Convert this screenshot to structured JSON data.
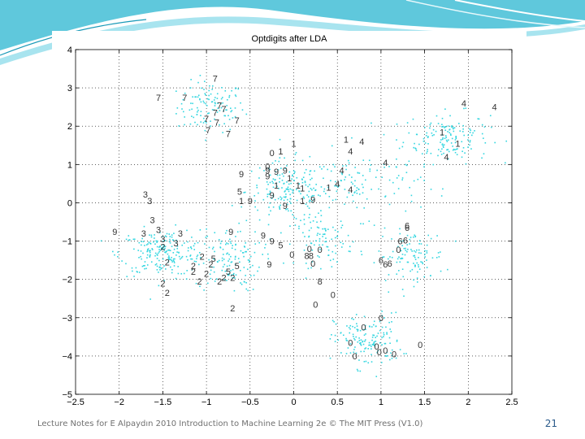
{
  "slide": {
    "footer": "Lecture Notes for E Alpaydın 2010 Introduction to Machine Learning 2e © The MIT Press (V1.0)",
    "page_number": "21",
    "header_colors": [
      "#5fc8dc",
      "#a8e4ef",
      "#1a9ab8"
    ]
  },
  "chart_data": {
    "type": "scatter",
    "title": "Optdigits after LDA",
    "xlim": [
      -2.5,
      2.5
    ],
    "ylim": [
      -5,
      4
    ],
    "xticks": [
      -2.5,
      -2,
      -1.5,
      -1,
      -0.5,
      0,
      0.5,
      1,
      1.5,
      2,
      2.5
    ],
    "yticks": [
      -5,
      -4,
      -3,
      -2,
      -1,
      0,
      1,
      2,
      3,
      4
    ],
    "grid": "dotted",
    "point_color": "#33d6e0",
    "background_point_clusters": [
      {
        "center": [
          -0.95,
          2.5
        ],
        "spread": [
          0.35,
          0.6
        ],
        "count": 120
      },
      {
        "center": [
          1.75,
          1.7
        ],
        "spread": [
          0.45,
          0.6
        ],
        "count": 150
      },
      {
        "center": [
          -0.05,
          0.3
        ],
        "spread": [
          0.45,
          0.75
        ],
        "count": 190
      },
      {
        "center": [
          -1.5,
          -1.3
        ],
        "spread": [
          0.45,
          0.55
        ],
        "count": 210
      },
      {
        "center": [
          -0.75,
          -1.5
        ],
        "spread": [
          0.35,
          0.75
        ],
        "count": 130
      },
      {
        "center": [
          0.85,
          -3.6
        ],
        "spread": [
          0.35,
          0.65
        ],
        "count": 150
      },
      {
        "center": [
          1.35,
          -1.4
        ],
        "spread": [
          0.35,
          0.6
        ],
        "count": 110
      },
      {
        "center": [
          0.35,
          -1.0
        ],
        "spread": [
          0.3,
          0.6
        ],
        "count": 90
      },
      {
        "center": [
          0.8,
          0.5
        ],
        "spread": [
          0.6,
          0.8
        ],
        "count": 110
      }
    ],
    "labeled_points": [
      {
        "label": "7",
        "x": -0.9,
        "y": 3.25
      },
      {
        "label": "7",
        "x": -1.55,
        "y": 2.75
      },
      {
        "label": "7",
        "x": -1.25,
        "y": 2.75
      },
      {
        "label": "7",
        "x": -0.85,
        "y": 2.55
      },
      {
        "label": "7",
        "x": -0.8,
        "y": 2.45
      },
      {
        "label": "7",
        "x": -0.9,
        "y": 2.35
      },
      {
        "label": "7",
        "x": -1.0,
        "y": 2.2
      },
      {
        "label": "7",
        "x": -0.88,
        "y": 2.1
      },
      {
        "label": "7",
        "x": -0.65,
        "y": 2.15
      },
      {
        "label": "7",
        "x": -0.98,
        "y": 1.9
      },
      {
        "label": "7",
        "x": -0.75,
        "y": 1.8
      },
      {
        "label": "4",
        "x": 1.95,
        "y": 2.6
      },
      {
        "label": "4",
        "x": 2.3,
        "y": 2.5
      },
      {
        "label": "1",
        "x": 1.7,
        "y": 1.85
      },
      {
        "label": "1",
        "x": 1.88,
        "y": 1.55
      },
      {
        "label": "4",
        "x": 1.75,
        "y": 1.2
      },
      {
        "label": "1",
        "x": 0.0,
        "y": 1.55
      },
      {
        "label": "1",
        "x": 0.6,
        "y": 1.65
      },
      {
        "label": "4",
        "x": 0.78,
        "y": 1.6
      },
      {
        "label": "4",
        "x": 0.65,
        "y": 1.35
      },
      {
        "label": "4",
        "x": 1.05,
        "y": 1.05
      },
      {
        "label": "4",
        "x": 0.55,
        "y": 0.85
      },
      {
        "label": "4",
        "x": 0.5,
        "y": 0.5
      },
      {
        "label": "4",
        "x": 0.65,
        "y": 0.35
      },
      {
        "label": "1",
        "x": 0.4,
        "y": 0.4
      },
      {
        "label": "0",
        "x": -0.25,
        "y": 1.3
      },
      {
        "label": "1",
        "x": -0.15,
        "y": 1.35
      },
      {
        "label": "0",
        "x": -0.3,
        "y": 0.95
      },
      {
        "label": "9",
        "x": -0.3,
        "y": 0.85
      },
      {
        "label": "9",
        "x": -0.2,
        "y": 0.82
      },
      {
        "label": "9",
        "x": -0.6,
        "y": 0.75
      },
      {
        "label": "9",
        "x": -0.3,
        "y": 0.7
      },
      {
        "label": "1",
        "x": -0.2,
        "y": 0.45
      },
      {
        "label": "9",
        "x": -0.1,
        "y": 0.85
      },
      {
        "label": "1",
        "x": -0.05,
        "y": 0.65
      },
      {
        "label": "1",
        "x": 0.05,
        "y": 0.45
      },
      {
        "label": "1",
        "x": 0.1,
        "y": 0.38
      },
      {
        "label": "9",
        "x": -0.25,
        "y": 0.2
      },
      {
        "label": "9",
        "x": -0.5,
        "y": 0.05
      },
      {
        "label": "1",
        "x": -0.6,
        "y": 0.05
      },
      {
        "label": "9",
        "x": -0.1,
        "y": -0.08
      },
      {
        "label": "9",
        "x": 0.22,
        "y": 0.08
      },
      {
        "label": "1",
        "x": 0.1,
        "y": 0.05
      },
      {
        "label": "5",
        "x": -0.62,
        "y": 0.3
      },
      {
        "label": "3",
        "x": -1.7,
        "y": 0.22
      },
      {
        "label": "3",
        "x": -1.65,
        "y": 0.05
      },
      {
        "label": "3",
        "x": -1.62,
        "y": -0.45
      },
      {
        "label": "3",
        "x": -1.55,
        "y": -0.7
      },
      {
        "label": "3",
        "x": -1.72,
        "y": -0.8
      },
      {
        "label": "3",
        "x": -1.5,
        "y": -0.95
      },
      {
        "label": "3",
        "x": -1.3,
        "y": -0.8
      },
      {
        "label": "3",
        "x": -1.35,
        "y": -1.05
      },
      {
        "label": "9",
        "x": -2.05,
        "y": -0.75
      },
      {
        "label": "9",
        "x": -0.72,
        "y": -0.75
      },
      {
        "label": "9",
        "x": -0.35,
        "y": -0.85
      },
      {
        "label": "9",
        "x": -0.25,
        "y": -1.0
      },
      {
        "label": "5",
        "x": -0.15,
        "y": -1.1
      },
      {
        "label": "0",
        "x": -0.02,
        "y": -1.35
      },
      {
        "label": "0",
        "x": 0.18,
        "y": -1.2
      },
      {
        "label": "0",
        "x": 0.3,
        "y": -1.22
      },
      {
        "label": "8",
        "x": 0.15,
        "y": -1.38
      },
      {
        "label": "8",
        "x": 0.2,
        "y": -1.38
      },
      {
        "label": "0",
        "x": 0.22,
        "y": -1.58
      },
      {
        "label": "9",
        "x": -0.28,
        "y": -1.6
      },
      {
        "label": "2",
        "x": -1.5,
        "y": -1.15
      },
      {
        "label": "2",
        "x": -1.45,
        "y": -1.55
      },
      {
        "label": "2",
        "x": -1.05,
        "y": -1.4
      },
      {
        "label": "2",
        "x": -1.15,
        "y": -1.65
      },
      {
        "label": "2",
        "x": -0.95,
        "y": -1.6
      },
      {
        "label": "2",
        "x": -1.15,
        "y": -1.8
      },
      {
        "label": "2",
        "x": -1.0,
        "y": -1.85
      },
      {
        "label": "5",
        "x": -0.92,
        "y": -1.45
      },
      {
        "label": "5",
        "x": -0.65,
        "y": -1.65
      },
      {
        "label": "5",
        "x": -0.75,
        "y": -1.8
      },
      {
        "label": "2",
        "x": -0.8,
        "y": -1.95
      },
      {
        "label": "2",
        "x": -0.7,
        "y": -1.95
      },
      {
        "label": "2",
        "x": -1.08,
        "y": -2.05
      },
      {
        "label": "2",
        "x": -0.85,
        "y": -2.05
      },
      {
        "label": "2",
        "x": -1.5,
        "y": -2.1
      },
      {
        "label": "2",
        "x": -1.45,
        "y": -2.35
      },
      {
        "label": "2",
        "x": -0.7,
        "y": -2.75
      },
      {
        "label": "8",
        "x": 0.3,
        "y": -2.05
      },
      {
        "label": "6",
        "x": 1.3,
        "y": -0.6
      },
      {
        "label": "6",
        "x": 1.3,
        "y": -0.65
      },
      {
        "label": "6",
        "x": 1.22,
        "y": -1.0
      },
      {
        "label": "6",
        "x": 1.28,
        "y": -0.98
      },
      {
        "label": "0",
        "x": 1.2,
        "y": -1.22
      },
      {
        "label": "6",
        "x": 1.0,
        "y": -1.5
      },
      {
        "label": "6",
        "x": 1.05,
        "y": -1.6
      },
      {
        "label": "6",
        "x": 1.1,
        "y": -1.58
      },
      {
        "label": "0",
        "x": 0.45,
        "y": -2.4
      },
      {
        "label": "0",
        "x": 0.25,
        "y": -2.65
      },
      {
        "label": "0",
        "x": 1.0,
        "y": -3.0
      },
      {
        "label": "0",
        "x": 0.8,
        "y": -3.25
      },
      {
        "label": "0",
        "x": 0.65,
        "y": -3.65
      },
      {
        "label": "0",
        "x": 0.95,
        "y": -3.75
      },
      {
        "label": "0",
        "x": 1.05,
        "y": -3.85
      },
      {
        "label": "0",
        "x": 0.98,
        "y": -3.9
      },
      {
        "label": "0",
        "x": 1.15,
        "y": -3.95
      },
      {
        "label": "0",
        "x": 0.7,
        "y": -4.0
      },
      {
        "label": "0",
        "x": 1.45,
        "y": -3.7
      }
    ]
  }
}
